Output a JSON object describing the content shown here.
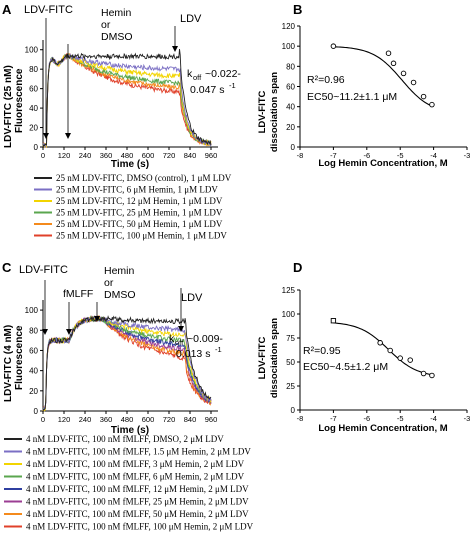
{
  "colors": {
    "control": "#222222",
    "h1_5": "#7b6fc4",
    "h3": "#f2d400",
    "h6": "#5aa64e",
    "h12": "#2f3fa0",
    "h25": "#9b3d93",
    "h50": "#f48a1c",
    "h100": "#e0402a"
  },
  "panels": {
    "A": {
      "letter": "A",
      "ylabel": "LDV-FITC (25 nM)",
      "ylabel2": "Fluorescence",
      "xlabel": "Time (s)",
      "xticks": [
        "0",
        "120",
        "240",
        "360",
        "480",
        "600",
        "720",
        "840",
        "960"
      ],
      "yticks": [
        "0",
        "20",
        "40",
        "60",
        "80",
        "100"
      ],
      "annotations": {
        "ldvfitc": "LDV-FITC",
        "hemin": "Hemin",
        "or": "or",
        "dmso": "DMSO",
        "ldv": "LDV",
        "koff": "k",
        "koff_sub": "off",
        "koff_val": "~0.022-",
        "koff_val2": "0.047 s",
        "koff_exp": "-1"
      },
      "legend": [
        {
          "label": "25 nM LDV-FITC, DMSO (control), 1 μM LDV",
          "color": "#222222"
        },
        {
          "label": "25 nM LDV-FITC, 6 μM Hemin, 1 μM LDV",
          "color": "#7b6fc4"
        },
        {
          "label": "25 nM LDV-FITC, 12 μM Hemin, 1 μM LDV",
          "color": "#f2d400"
        },
        {
          "label": "25 nM LDV-FITC, 25 μM Hemin, 1 μM LDV",
          "color": "#5aa64e"
        },
        {
          "label": "25 nM LDV-FITC, 50 μM Hemin, 1 μM LDV",
          "color": "#f48a1c"
        },
        {
          "label": "25 nM LDV-FITC, 100 μM Hemin, 1 μM LDV",
          "color": "#e0402a"
        }
      ]
    },
    "B": {
      "letter": "B",
      "ylabel": "LDV-FITC",
      "ylabel2": "dissociation span",
      "xlabel": "Log Hemin Concentration, M",
      "xticks": [
        "-8",
        "-7",
        "-6",
        "-5",
        "-4",
        "-3"
      ],
      "yticks": [
        "0",
        "20",
        "40",
        "60",
        "80",
        "100",
        "120"
      ],
      "r2": "R²=0.96",
      "ec50": "EC50~11.2±1.1 μM"
    },
    "C": {
      "letter": "C",
      "ylabel": "LDV-FITC (4 nM)",
      "ylabel2": "Fluorescence",
      "xlabel": "Time (s)",
      "xticks": [
        "0",
        "120",
        "240",
        "360",
        "480",
        "600",
        "720",
        "840",
        "960"
      ],
      "yticks": [
        "0",
        "20",
        "40",
        "60",
        "80",
        "100"
      ],
      "annotations": {
        "ldvfitc": "LDV-FITC",
        "fmlff": "fMLFF",
        "hemin": "Hemin",
        "or": "or",
        "dmso": "DMSO",
        "ldv": "LDV",
        "koff": "k",
        "koff_sub": "off",
        "koff_val": "~0.009-",
        "koff_val2": "0.013 s",
        "koff_exp": "-1"
      },
      "legend": [
        {
          "label": "4 nM LDV-FITC, 100 nM fMLFF, DMSO, 2 μM LDV",
          "color": "#222222"
        },
        {
          "label": "4 nM LDV-FITC, 100 nM fMLFF, 1.5 μM Hemin, 2 μM LDV",
          "color": "#7b6fc4"
        },
        {
          "label": "4 nM LDV-FITC, 100 nM fMLFF, 3 μM Hemin, 2 μM LDV",
          "color": "#f2d400"
        },
        {
          "label": "4 nM LDV-FITC, 100 nM fMLFF, 6 μM Hemin, 2 μM LDV",
          "color": "#5aa64e"
        },
        {
          "label": "4 nM LDV-FITC, 100 nM fMLFF, 12 μM Hemin, 2 μM LDV",
          "color": "#2f3fa0"
        },
        {
          "label": "4 nM LDV-FITC, 100 nM fMLFF, 25 μM Hemin, 2 μM LDV",
          "color": "#9b3d93"
        },
        {
          "label": "4 nM LDV-FITC, 100 nM fMLFF, 50 μM Hemin, 2 μM LDV",
          "color": "#f48a1c"
        },
        {
          "label": "4 nM LDV-FITC, 100 nM fMLFF, 100 μM Hemin, 2 μM LDV",
          "color": "#e0402a"
        }
      ]
    },
    "D": {
      "letter": "D",
      "ylabel": "LDV-FITC",
      "ylabel2": "dissociation span",
      "xlabel": "Log Hemin Concentration, M",
      "xticks": [
        "-8",
        "-7",
        "-6",
        "-5",
        "-4",
        "-3"
      ],
      "yticks": [
        "0",
        "25",
        "50",
        "75",
        "100",
        "125"
      ],
      "r2": "R²=0.95",
      "ec50": "EC50~4.5±1.2 μM"
    }
  },
  "chart_data": [
    {
      "panel": "A",
      "type": "line",
      "xlabel": "Time (s)",
      "ylabel": "LDV-FITC (25 nM) Fluorescence",
      "xlim": [
        0,
        1000
      ],
      "ylim": [
        0,
        110
      ],
      "events": [
        {
          "label": "LDV-FITC",
          "t": 20
        },
        {
          "label": "Hemin or DMSO",
          "t": 150
        },
        {
          "label": "LDV",
          "t": 780
        }
      ],
      "series": [
        {
          "name": "25 nM LDV-FITC, DMSO (control), 1 μM LDV",
          "color": "#222222",
          "plateau": 93,
          "final": 3
        },
        {
          "name": "25 nM LDV-FITC, 6 μM Hemin, 1 μM LDV",
          "color": "#7b6fc4",
          "plateau": 78,
          "final": 3
        },
        {
          "name": "25 nM LDV-FITC, 12 μM Hemin, 1 μM LDV",
          "color": "#f2d400",
          "plateau": 70,
          "final": 3
        },
        {
          "name": "25 nM LDV-FITC, 25 μM Hemin, 1 μM LDV",
          "color": "#5aa64e",
          "plateau": 62,
          "final": 3
        },
        {
          "name": "25 nM LDV-FITC, 50 μM Hemin, 1 μM LDV",
          "color": "#f48a1c",
          "plateau": 57,
          "final": 3
        },
        {
          "name": "25 nM LDV-FITC, 100 μM Hemin, 1 μM LDV",
          "color": "#e0402a",
          "plateau": 52,
          "final": 3
        }
      ]
    },
    {
      "panel": "B",
      "type": "scatter",
      "xlabel": "Log Hemin Concentration, M",
      "ylabel": "LDV-FITC dissociation span",
      "xlim": [
        -8,
        -3
      ],
      "ylim": [
        0,
        120
      ],
      "x": [
        -7.0,
        -5.35,
        -5.2,
        -4.9,
        -4.6,
        -4.3,
        -4.05
      ],
      "y": [
        100,
        93,
        83,
        73,
        64,
        50,
        42
      ],
      "fit": {
        "top": 100,
        "bottom": 33,
        "log_ec50": -4.95,
        "hill": -1
      }
    },
    {
      "panel": "C",
      "type": "line",
      "xlabel": "Time (s)",
      "ylabel": "LDV-FITC (4 nM) Fluorescence",
      "xlim": [
        0,
        1000
      ],
      "ylim": [
        0,
        110
      ],
      "events": [
        {
          "label": "LDV-FITC",
          "t": 15
        },
        {
          "label": "fMLFF",
          "t": 150
        },
        {
          "label": "Hemin or DMSO",
          "t": 330
        },
        {
          "label": "LDV",
          "t": 810
        }
      ],
      "series": [
        {
          "name": "4 nM LDV-FITC, 100 nM fMLFF, DMSO, 2 μM LDV",
          "color": "#222222",
          "plateau": 88,
          "final": 5
        },
        {
          "name": "4 nM LDV-FITC, 100 nM fMLFF, 1.5 μM Hemin, 2 μM LDV",
          "color": "#7b6fc4",
          "plateau": 78,
          "final": 5
        },
        {
          "name": "4 nM LDV-FITC, 100 nM fMLFF, 3 μM Hemin, 2 μM LDV",
          "color": "#f2d400",
          "plateau": 72,
          "final": 5
        },
        {
          "name": "4 nM LDV-FITC, 100 nM fMLFF, 6 μM Hemin, 2 μM LDV",
          "color": "#5aa64e",
          "plateau": 65,
          "final": 5
        },
        {
          "name": "4 nM LDV-FITC, 100 nM fMLFF, 12 μM Hemin, 2 μM LDV",
          "color": "#2f3fa0",
          "plateau": 60,
          "final": 5
        },
        {
          "name": "4 nM LDV-FITC, 100 nM fMLFF, 25 μM Hemin, 2 μM LDV",
          "color": "#9b3d93",
          "plateau": 55,
          "final": 5
        },
        {
          "name": "4 nM LDV-FITC, 100 nM fMLFF, 50 μM Hemin, 2 μM LDV",
          "color": "#f48a1c",
          "plateau": 50,
          "final": 5
        },
        {
          "name": "4 nM LDV-FITC, 100 nM fMLFF, 100 μM Hemin, 2 μM LDV",
          "color": "#e0402a",
          "plateau": 45,
          "final": 5
        }
      ]
    },
    {
      "panel": "D",
      "type": "scatter",
      "xlabel": "Log Hemin Concentration, M",
      "ylabel": "LDV-FITC dissociation span",
      "xlim": [
        -8,
        -3
      ],
      "ylim": [
        0,
        125
      ],
      "x": [
        -7.0,
        -5.6,
        -5.3,
        -5.0,
        -4.7,
        -4.3,
        -4.05
      ],
      "y": [
        93,
        70,
        62,
        54,
        52,
        38,
        36
      ],
      "fit": {
        "top": 92,
        "bottom": 34,
        "log_ec50": -5.35,
        "hill": -1
      }
    }
  ]
}
